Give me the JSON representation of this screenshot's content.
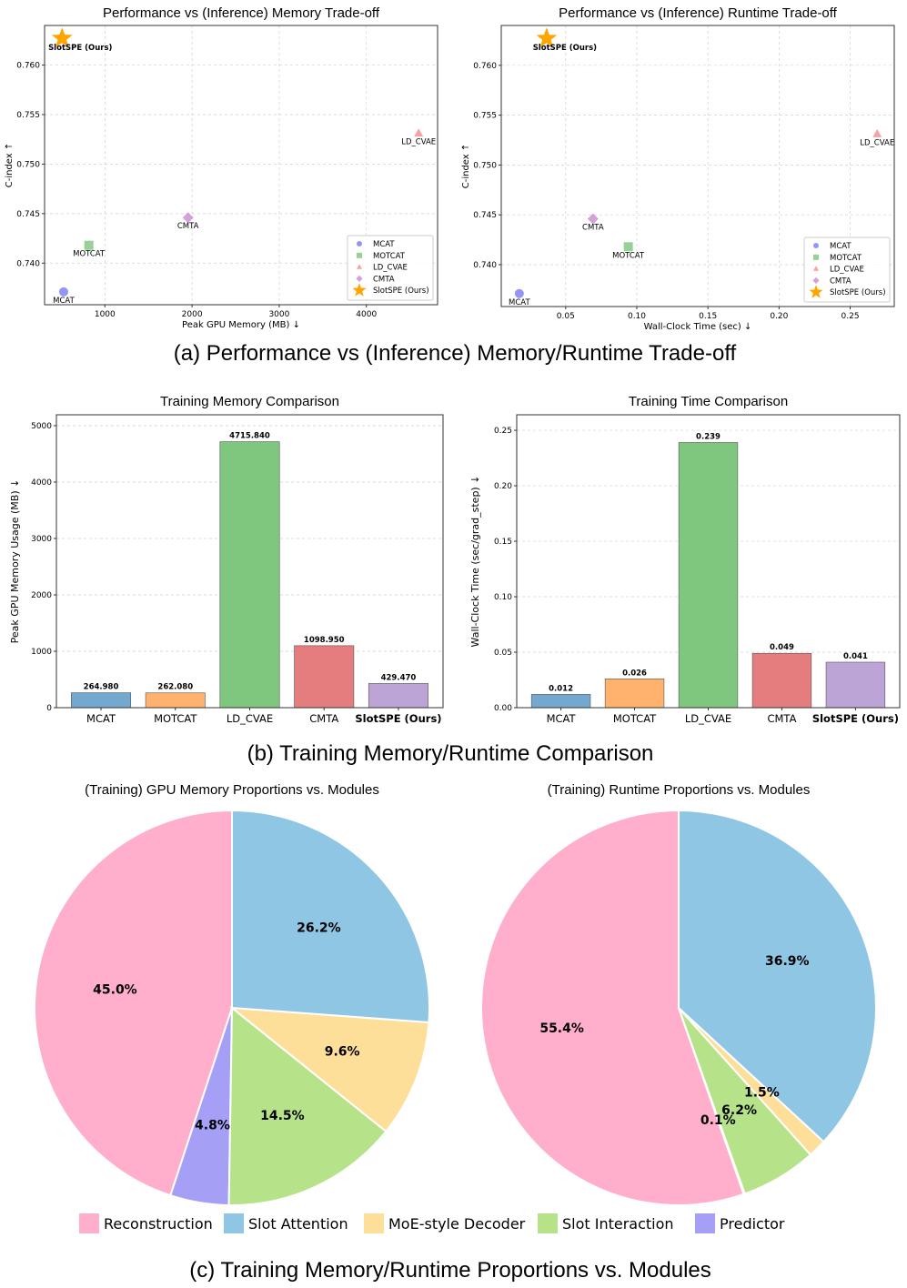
{
  "captions": {
    "a": "(a) Performance vs (Inference) Memory/Runtime Trade-off",
    "b": "(b) Training Memory/Runtime Comparison",
    "c": "(c) Training Memory/Runtime Proportions vs. Modules"
  },
  "chart_data": [
    {
      "type": "scatter",
      "title": "Performance vs (Inference) Memory Trade-off",
      "xlabel": "Peak GPU Memory (MB) ↓",
      "ylabel": "C-index ↑",
      "xlim": [
        308,
        4817
      ],
      "ylim": [
        0.7358,
        0.764
      ],
      "xticks": [
        1000,
        2000,
        3000,
        4000
      ],
      "yticks": [
        0.74,
        0.745,
        0.75,
        0.755,
        0.76
      ],
      "grid": true,
      "legend": "bottom-right",
      "series": [
        {
          "name": "MCAT",
          "marker": "circle",
          "color": "#7b7bf5",
          "x": 527,
          "y": 0.7371,
          "label": "MCAT"
        },
        {
          "name": "MOTCAT",
          "marker": "square",
          "color": "#7cc57c",
          "x": 816,
          "y": 0.7418,
          "label": "MOTCAT"
        },
        {
          "name": "LD_CVAE",
          "marker": "triangle",
          "color": "#f58a8a",
          "x": 4600,
          "y": 0.7531,
          "label": "LD_CVAE"
        },
        {
          "name": "CMTA",
          "marker": "diamond",
          "color": "#c98bd0",
          "x": 1954,
          "y": 0.7446,
          "label": "CMTA"
        },
        {
          "name": "SlotSPE (Ours)",
          "marker": "star",
          "color": "#ffa500",
          "x": 509,
          "y": 0.7627,
          "label": "SlotSPE (Ours)"
        }
      ]
    },
    {
      "type": "scatter",
      "title": "Performance vs (Inference) Runtime Trade-off",
      "xlabel": "Wall-Clock Time (sec) ↓",
      "ylabel": "C-index ↑",
      "xlim": [
        0.0047,
        0.281
      ],
      "ylim": [
        0.7358,
        0.764
      ],
      "xticks": [
        0.05,
        0.1,
        0.15,
        0.2,
        0.25
      ],
      "yticks": [
        0.74,
        0.745,
        0.75,
        0.755,
        0.76
      ],
      "grid": true,
      "legend": "bottom-right",
      "series": [
        {
          "name": "MCAT",
          "marker": "circle",
          "color": "#7b7bf5",
          "x": 0.0174,
          "y": 0.7371,
          "label": "MCAT"
        },
        {
          "name": "MOTCAT",
          "marker": "square",
          "color": "#7cc57c",
          "x": 0.094,
          "y": 0.7418,
          "label": "MOTCAT"
        },
        {
          "name": "LD_CVAE",
          "marker": "triangle",
          "color": "#f58a8a",
          "x": 0.269,
          "y": 0.7531,
          "label": "LD_CVAE"
        },
        {
          "name": "CMTA",
          "marker": "diamond",
          "color": "#c98bd0",
          "x": 0.0692,
          "y": 0.7446,
          "label": "CMTA"
        },
        {
          "name": "SlotSPE (Ours)",
          "marker": "star",
          "color": "#ffa500",
          "x": 0.0366,
          "y": 0.7627,
          "label": "SlotSPE (Ours)"
        }
      ]
    },
    {
      "type": "bar",
      "title": "Training Memory Comparison",
      "xlabel": "",
      "ylabel": "Peak GPU Memory Usage (MB) ↓",
      "categories": [
        "MCAT",
        "MOTCAT",
        "LD_CVAE",
        "CMTA",
        "SlotSPE (Ours)"
      ],
      "values": [
        264.98,
        262.08,
        4715.84,
        1098.95,
        429.47
      ],
      "data_labels": [
        "264.980",
        "262.080",
        "4715.840",
        "1098.950",
        "429.470"
      ],
      "colors": [
        "#74a9cf",
        "#ffb26e",
        "#7fc77f",
        "#e57d7e",
        "#bca4d6"
      ],
      "ylim": [
        0,
        5193
      ],
      "yticks": [
        0,
        1000,
        2000,
        3000,
        4000,
        5000
      ],
      "grid": true
    },
    {
      "type": "bar",
      "title": "Training Time Comparison",
      "xlabel": "",
      "ylabel": "Wall-Clock Time (sec/grad_step) ↓",
      "categories": [
        "MCAT",
        "MOTCAT",
        "LD_CVAE",
        "CMTA",
        "SlotSPE (Ours)"
      ],
      "values": [
        0.012,
        0.026,
        0.239,
        0.049,
        0.041
      ],
      "data_labels": [
        "0.012",
        "0.026",
        "0.239",
        "0.049",
        "0.041"
      ],
      "colors": [
        "#74a9cf",
        "#ffb26e",
        "#7fc77f",
        "#e57d7e",
        "#bca4d6"
      ],
      "ylim": [
        0,
        0.264
      ],
      "yticks": [
        0.0,
        0.05,
        0.1,
        0.15,
        0.2,
        0.25
      ],
      "grid": true
    },
    {
      "type": "pie",
      "title": "(Training) GPU Memory Proportions vs. Modules",
      "labels": [
        "Reconstruction",
        "Predictor",
        "Slot Interaction",
        "MoE-style Decoder",
        "Slot Attention"
      ],
      "values": [
        45.0,
        4.8,
        14.5,
        9.6,
        26.2
      ],
      "data_labels": [
        "45.0%",
        "4.8%",
        "14.5%",
        "9.6%",
        "26.2%"
      ],
      "colors": [
        "#ffaecb",
        "#a5a0f5",
        "#b6e38a",
        "#fddf9a",
        "#8ec6e4"
      ]
    },
    {
      "type": "pie",
      "title": "(Training) Runtime Proportions vs. Modules",
      "labels": [
        "Reconstruction",
        "Predictor",
        "Slot Interaction",
        "MoE-style Decoder",
        "Slot Attention"
      ],
      "values": [
        55.4,
        0.1,
        6.2,
        1.5,
        36.9
      ],
      "data_labels": [
        "55.4%",
        "0.1%",
        "6.2%",
        "1.5%",
        "36.9%"
      ],
      "colors": [
        "#ffaecb",
        "#a5a0f5",
        "#b6e38a",
        "#fddf9a",
        "#8ec6e4"
      ]
    }
  ],
  "pie_legend": [
    {
      "label": "Reconstruction",
      "color": "#ffaecb"
    },
    {
      "label": "Slot Attention",
      "color": "#8ec6e4"
    },
    {
      "label": "MoE-style Decoder",
      "color": "#fddf9a"
    },
    {
      "label": "Slot Interaction",
      "color": "#b6e38a"
    },
    {
      "label": "Predictor",
      "color": "#a5a0f5"
    }
  ]
}
